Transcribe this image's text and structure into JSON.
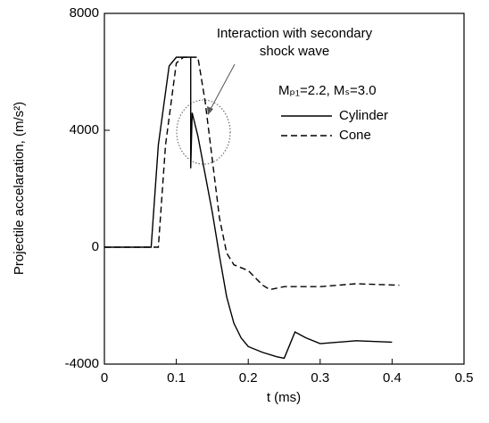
{
  "chart_data": {
    "type": "line",
    "x_label": "t (ms)",
    "y_label": "Projectile accelaration, (m/s²)",
    "annotation": [
      "Interaction with secondary",
      "shock wave"
    ],
    "legend_title": "Mₚ₁=2.2, Mₛ=3.0",
    "xlim": [
      0,
      0.5
    ],
    "xticks": [
      0,
      0.1,
      0.2,
      0.3,
      0.4,
      0.5
    ],
    "ylim": [
      -4000,
      8000
    ],
    "yticks": [
      -4000,
      0,
      4000,
      8000
    ],
    "grid": false,
    "series": [
      {
        "name": "Cylinder",
        "color": "#000000",
        "line_style": "solid",
        "x": [
          0,
          0.065,
          0.075,
          0.09,
          0.1,
          0.12,
          0.12,
          0.122,
          0.13,
          0.14,
          0.15,
          0.16,
          0.17,
          0.18,
          0.19,
          0.2,
          0.22,
          0.24,
          0.25,
          0.26,
          0.265,
          0.28,
          0.3,
          0.35,
          0.4
        ],
        "values": [
          0,
          0,
          3500,
          6200,
          6500,
          6500,
          2700,
          4600,
          3800,
          2500,
          1200,
          -300,
          -1700,
          -2600,
          -3100,
          -3400,
          -3600,
          -3750,
          -3800,
          -3200,
          -2900,
          -3100,
          -3300,
          -3200,
          -3250
        ]
      },
      {
        "name": "Cone",
        "color": "#000000",
        "line_style": "dashed",
        "x": [
          0,
          0.075,
          0.085,
          0.1,
          0.11,
          0.13,
          0.14,
          0.15,
          0.16,
          0.17,
          0.18,
          0.2,
          0.22,
          0.23,
          0.25,
          0.3,
          0.35,
          0.41
        ],
        "values": [
          0,
          0,
          3500,
          6300,
          6500,
          6500,
          5000,
          3000,
          1000,
          -200,
          -600,
          -800,
          -1300,
          -1450,
          -1350,
          -1350,
          -1250,
          -1300
        ]
      }
    ]
  }
}
